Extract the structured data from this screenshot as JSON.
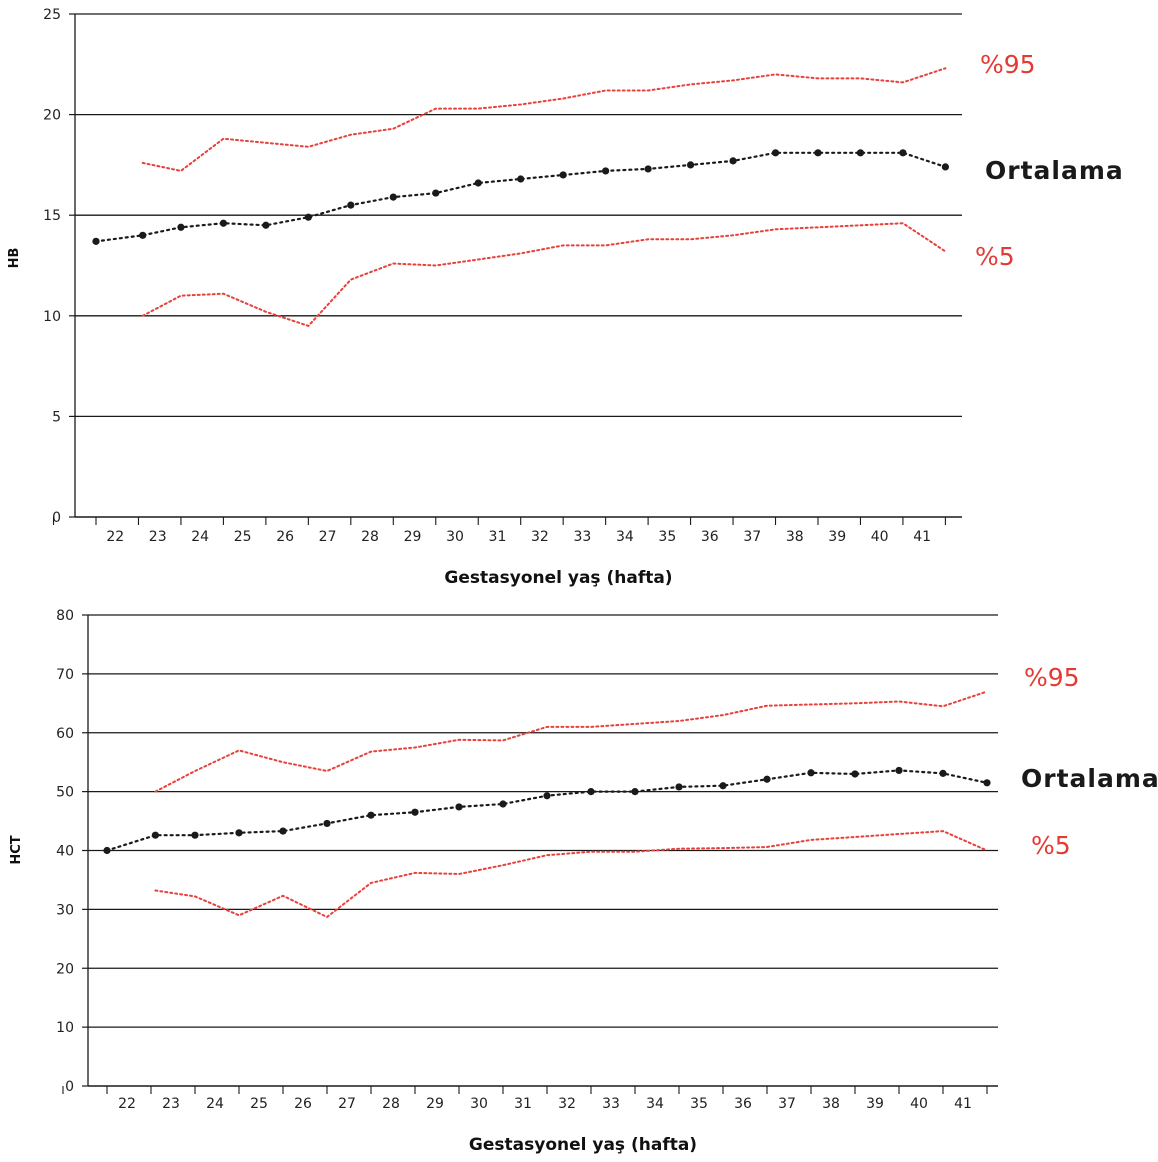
{
  "colors": {
    "percentile": "#e8403a",
    "mean": "#1a1a1a",
    "grid": "#1a1a1a",
    "label_red": "#e53a34"
  },
  "chart_data": [
    {
      "type": "line",
      "xlabel": "Gestasyonel yaş (hafta)",
      "ylabel": "HB",
      "ylim": [
        0,
        25
      ],
      "yticks": [
        "0",
        "5",
        "10",
        "15",
        "20",
        "25"
      ],
      "xtick_labels": [
        "22",
        "23",
        "24",
        "25",
        "26",
        "27",
        "28",
        "29",
        "30",
        "31",
        "32",
        "33",
        "34",
        "35",
        "36",
        "37",
        "38",
        "39",
        "40",
        "41"
      ],
      "grid": "horizontal",
      "series": [
        {
          "name": "%95",
          "style": "dotted",
          "color": "#e8403a",
          "x": [
            22.6,
            23.5,
            24.5,
            25.5,
            26.5,
            27.5,
            28.5,
            29.5,
            30.5,
            31.5,
            32.5,
            33.5,
            34.5,
            35.5,
            36.5,
            37.5,
            38.5,
            39.5,
            40.5,
            41.5
          ],
          "y": [
            17.6,
            17.2,
            18.8,
            18.6,
            18.4,
            19.0,
            19.3,
            20.3,
            20.3,
            20.5,
            20.8,
            21.2,
            21.2,
            21.5,
            21.7,
            22.0,
            21.8,
            21.8,
            21.6,
            22.3
          ]
        },
        {
          "name": "Ortalama",
          "style": "dotted-markers",
          "color": "#1a1a1a",
          "x": [
            21.5,
            22.6,
            23.5,
            24.5,
            25.5,
            26.5,
            27.5,
            28.5,
            29.5,
            30.5,
            31.5,
            32.5,
            33.5,
            34.5,
            35.5,
            36.5,
            37.5,
            38.5,
            39.5,
            40.5,
            41.5
          ],
          "y": [
            13.7,
            14.0,
            14.4,
            14.6,
            14.5,
            14.9,
            15.5,
            15.9,
            16.1,
            16.6,
            16.8,
            17.0,
            17.2,
            17.3,
            17.5,
            17.7,
            18.1,
            18.1,
            18.1,
            18.1,
            17.4
          ]
        },
        {
          "name": "%5",
          "style": "dotted",
          "color": "#e8403a",
          "x": [
            22.6,
            23.5,
            24.5,
            25.5,
            26.5,
            27.5,
            28.5,
            29.5,
            30.5,
            31.5,
            32.5,
            33.5,
            34.5,
            35.5,
            36.5,
            37.5,
            38.5,
            39.5,
            40.5,
            41.5
          ],
          "y": [
            10.0,
            11.0,
            11.1,
            10.2,
            9.5,
            11.8,
            12.6,
            12.5,
            12.8,
            13.1,
            13.5,
            13.5,
            13.8,
            13.8,
            14.0,
            14.3,
            14.4,
            14.5,
            14.6,
            13.2
          ]
        }
      ],
      "annotations": [
        "%95",
        "Ortalama",
        "%5"
      ]
    },
    {
      "type": "line",
      "xlabel": "Gestasyonel yaş (hafta)",
      "ylabel": "HCT",
      "ylim": [
        0,
        80
      ],
      "yticks": [
        "0",
        "10",
        "20",
        "30",
        "40",
        "50",
        "60",
        "70",
        "80"
      ],
      "xtick_labels": [
        "22",
        "23",
        "24",
        "25",
        "26",
        "27",
        "28",
        "29",
        "30",
        "31",
        "32",
        "33",
        "34",
        "35",
        "36",
        "37",
        "38",
        "39",
        "40",
        "41"
      ],
      "grid": "horizontal",
      "series": [
        {
          "name": "%95",
          "style": "dotted",
          "color": "#e8403a",
          "x": [
            22.6,
            23.5,
            24.5,
            25.5,
            26.5,
            27.5,
            28.5,
            29.5,
            30.5,
            31.5,
            32.5,
            33.5,
            34.5,
            35.5,
            36.5,
            37.5,
            38.5,
            39.5,
            40.5,
            41.5
          ],
          "y": [
            50.0,
            53.5,
            57.0,
            55.0,
            53.5,
            56.8,
            57.5,
            58.8,
            58.7,
            61.0,
            61.0,
            61.5,
            62.0,
            63.0,
            64.6,
            64.8,
            65.0,
            65.3,
            64.5,
            67.0
          ]
        },
        {
          "name": "Ortalama",
          "style": "dotted-markers",
          "color": "#1a1a1a",
          "x": [
            21.5,
            22.6,
            23.5,
            24.5,
            25.5,
            26.5,
            27.5,
            28.5,
            29.5,
            30.5,
            31.5,
            32.5,
            33.5,
            34.5,
            35.5,
            36.5,
            37.5,
            38.5,
            39.5,
            40.5,
            41.5
          ],
          "y": [
            40.0,
            42.6,
            42.6,
            43.0,
            43.3,
            44.6,
            46.0,
            46.5,
            47.4,
            47.9,
            49.3,
            50.0,
            50.0,
            50.8,
            51.0,
            52.1,
            53.2,
            53.0,
            53.6,
            53.1,
            51.5
          ]
        },
        {
          "name": "%5",
          "style": "dotted",
          "color": "#e8403a",
          "x": [
            22.6,
            23.5,
            24.5,
            25.5,
            26.5,
            27.5,
            28.5,
            29.5,
            30.5,
            31.5,
            32.5,
            33.5,
            34.5,
            35.5,
            36.5,
            37.5,
            38.5,
            39.5,
            40.5,
            41.5
          ],
          "y": [
            33.2,
            32.2,
            29.0,
            32.3,
            28.7,
            34.5,
            36.2,
            36.0,
            37.5,
            39.2,
            39.8,
            39.8,
            40.3,
            40.4,
            40.6,
            41.8,
            42.3,
            42.8,
            43.3,
            40.0
          ]
        }
      ],
      "annotations": [
        "%95",
        "Ortalama",
        "%5"
      ]
    }
  ]
}
